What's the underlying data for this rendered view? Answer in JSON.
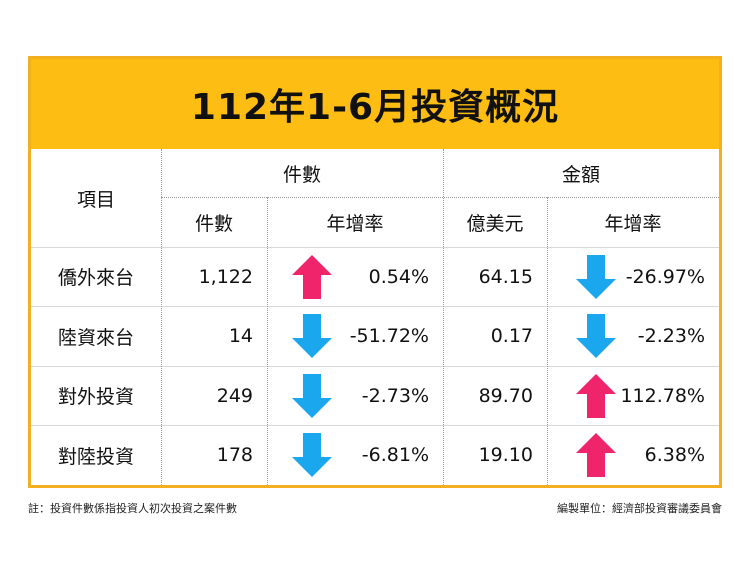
{
  "title": "112年1-6月投資概況",
  "header": {
    "item": "項目",
    "count_group": "件數",
    "amount_group": "金額",
    "count": "件數",
    "count_growth": "年增率",
    "amount_unit": "億美元",
    "amount_growth": "年增率"
  },
  "rows": [
    {
      "label": "僑外來台",
      "count": "1,122",
      "count_dir": "up",
      "count_growth": "0.54%",
      "amount": "64.15",
      "amount_dir": "down",
      "amount_growth": "-26.97%"
    },
    {
      "label": "陸資來台",
      "count": "14",
      "count_dir": "down",
      "count_growth": "-51.72%",
      "amount": "0.17",
      "amount_dir": "down",
      "amount_growth": "-2.23%"
    },
    {
      "label": "對外投資",
      "count": "249",
      "count_dir": "down",
      "count_growth": "-2.73%",
      "amount": "89.70",
      "amount_dir": "up",
      "amount_growth": "112.78%"
    },
    {
      "label": "對陸投資",
      "count": "178",
      "count_dir": "down",
      "count_growth": "-6.81%",
      "amount": "19.10",
      "amount_dir": "up",
      "amount_growth": "6.38%"
    }
  ],
  "colors": {
    "title_bg": "#fdbd12",
    "border": "#f2b01e",
    "up": "#f0246b",
    "down": "#1ba7ee"
  },
  "footer": {
    "note": "註：投資件數係指投資人初次投資之案件數",
    "source": "編製單位：經濟部投資審議委員會"
  }
}
